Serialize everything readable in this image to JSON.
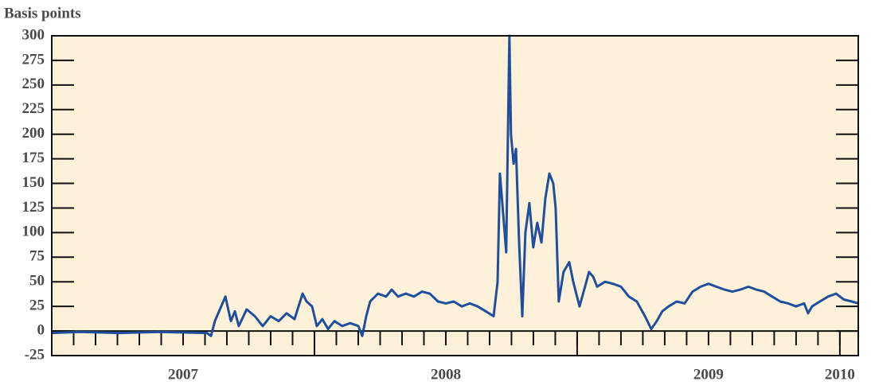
{
  "chart_data": {
    "type": "line",
    "y_axis_label": "Basis points",
    "xlim": [
      2007,
      2010.07
    ],
    "ylim": [
      -25,
      300
    ],
    "yticks": [
      -25,
      0,
      25,
      50,
      75,
      100,
      125,
      150,
      175,
      200,
      225,
      250,
      275,
      300
    ],
    "xticks": [
      {
        "value": 2007.5,
        "label": "2007"
      },
      {
        "value": 2008.5,
        "label": "2008"
      },
      {
        "value": 2009.5,
        "label": "2009"
      },
      {
        "value": 2010.0,
        "label": "2010"
      }
    ],
    "major_xticks": [
      2008,
      2009,
      2010
    ],
    "background": "#fdf1d9",
    "series": [
      {
        "color": "#1f4e9c",
        "x": [
          2007.0,
          2007.106,
          2007.258,
          2007.409,
          2007.591,
          2007.606,
          2007.621,
          2007.661,
          2007.682,
          2007.697,
          2007.712,
          2007.742,
          2007.773,
          2007.803,
          2007.833,
          2007.864,
          2007.894,
          2007.924,
          2007.955,
          2007.97,
          2007.991,
          2008.009,
          2008.03,
          2008.052,
          2008.076,
          2008.106,
          2008.136,
          2008.167,
          2008.182,
          2008.197,
          2008.212,
          2008.242,
          2008.273,
          2008.294,
          2008.318,
          2008.348,
          2008.379,
          2008.409,
          2008.439,
          2008.47,
          2008.5,
          2008.53,
          2008.561,
          2008.591,
          2008.621,
          2008.652,
          2008.682,
          2008.697,
          2008.706,
          2008.718,
          2008.73,
          2008.742,
          2008.748,
          2008.758,
          2008.767,
          2008.779,
          2008.791,
          2008.803,
          2008.818,
          2008.833,
          2008.848,
          2008.864,
          2008.879,
          2008.894,
          2008.909,
          2008.918,
          2008.93,
          2008.948,
          2008.97,
          2008.985,
          2009.009,
          2009.03,
          2009.045,
          2009.061,
          2009.076,
          2009.106,
          2009.136,
          2009.167,
          2009.197,
          2009.227,
          2009.258,
          2009.282,
          2009.303,
          2009.324,
          2009.348,
          2009.379,
          2009.409,
          2009.439,
          2009.47,
          2009.5,
          2009.53,
          2009.561,
          2009.591,
          2009.621,
          2009.652,
          2009.682,
          2009.712,
          2009.742,
          2009.773,
          2009.803,
          2009.833,
          2009.864,
          2009.879,
          2009.894,
          2009.924,
          2009.955,
          2009.985,
          2010.015,
          2010.045,
          2010.07
        ],
        "values": [
          -2,
          -1,
          -2,
          -1,
          -2,
          -5,
          10,
          35,
          10,
          20,
          5,
          22,
          15,
          5,
          15,
          10,
          18,
          12,
          38,
          30,
          25,
          5,
          12,
          2,
          10,
          5,
          8,
          5,
          -5,
          15,
          30,
          38,
          35,
          42,
          35,
          38,
          35,
          40,
          38,
          30,
          28,
          30,
          25,
          28,
          25,
          20,
          15,
          50,
          160,
          120,
          80,
          300,
          200,
          170,
          185,
          90,
          15,
          100,
          130,
          85,
          110,
          90,
          135,
          160,
          150,
          125,
          30,
          60,
          70,
          50,
          25,
          45,
          60,
          55,
          45,
          50,
          48,
          45,
          35,
          30,
          15,
          2,
          10,
          20,
          25,
          30,
          28,
          40,
          45,
          48,
          45,
          42,
          40,
          42,
          45,
          42,
          40,
          35,
          30,
          28,
          25,
          28,
          18,
          25,
          30,
          35,
          38,
          32,
          30,
          28
        ]
      }
    ]
  }
}
